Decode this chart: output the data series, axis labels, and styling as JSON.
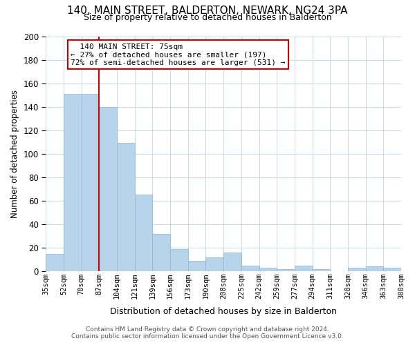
{
  "title": "140, MAIN STREET, BALDERTON, NEWARK, NG24 3PA",
  "subtitle": "Size of property relative to detached houses in Balderton",
  "xlabel": "Distribution of detached houses by size in Balderton",
  "ylabel": "Number of detached properties",
  "bar_labels": [
    "35sqm",
    "52sqm",
    "70sqm",
    "87sqm",
    "104sqm",
    "121sqm",
    "139sqm",
    "156sqm",
    "173sqm",
    "190sqm",
    "208sqm",
    "225sqm",
    "242sqm",
    "259sqm",
    "277sqm",
    "294sqm",
    "311sqm",
    "328sqm",
    "346sqm",
    "363sqm",
    "380sqm"
  ],
  "bar_heights": [
    15,
    151,
    151,
    140,
    109,
    65,
    32,
    19,
    9,
    12,
    16,
    5,
    3,
    2,
    5,
    2,
    0,
    3,
    4,
    3,
    0
  ],
  "bar_color": "#b8d4ea",
  "bar_edge_color": "#8ab4d4",
  "vline_color": "#cc0000",
  "annotation_title": "140 MAIN STREET: 75sqm",
  "annotation_line1": "← 27% of detached houses are smaller (197)",
  "annotation_line2": "72% of semi-detached houses are larger (531) →",
  "annotation_box_color": "#ffffff",
  "annotation_box_edge": "#cc0000",
  "ylim": [
    0,
    200
  ],
  "yticks": [
    0,
    20,
    40,
    60,
    80,
    100,
    120,
    140,
    160,
    180,
    200
  ],
  "footer_line1": "Contains HM Land Registry data © Crown copyright and database right 2024.",
  "footer_line2": "Contains public sector information licensed under the Open Government Licence v3.0.",
  "background_color": "#ffffff",
  "grid_color": "#c8d8ec"
}
